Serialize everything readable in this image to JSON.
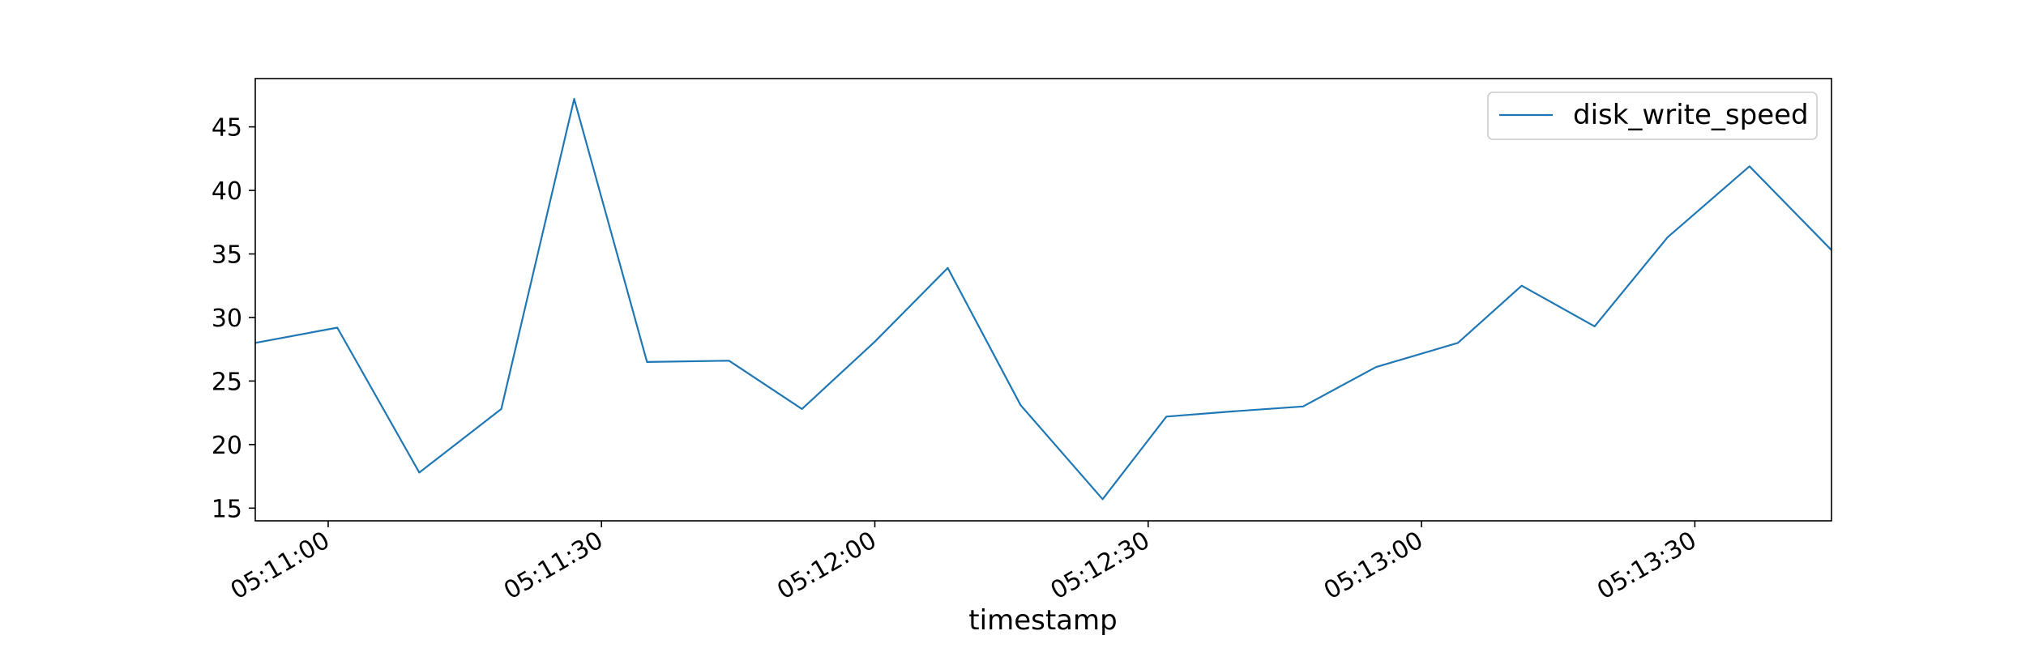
{
  "chart_data": {
    "type": "line",
    "title": "",
    "xlabel": "timestamp",
    "ylabel": "",
    "x": [
      "05:10:52",
      "05:11:01",
      "05:11:10",
      "05:11:19",
      "05:11:27",
      "05:11:35",
      "05:11:44",
      "05:11:52",
      "05:12:00",
      "05:12:08",
      "05:12:16",
      "05:12:25",
      "05:12:32",
      "05:12:39",
      "05:12:47",
      "05:12:55",
      "05:13:04",
      "05:13:11",
      "05:13:19",
      "05:13:27",
      "05:13:36",
      "05:13:45"
    ],
    "series": [
      {
        "name": "disk_write_speed",
        "color": "#1f77b4",
        "values": [
          28.0,
          29.2,
          17.8,
          22.8,
          47.2,
          26.5,
          26.6,
          22.8,
          28.1,
          33.9,
          23.1,
          15.7,
          22.2,
          22.6,
          23.0,
          26.1,
          28.0,
          32.5,
          29.3,
          36.3,
          41.9,
          35.3
        ]
      }
    ],
    "xlim": [
      "05:10:52",
      "05:13:45"
    ],
    "ylim": [
      14,
      48.8
    ],
    "xticks": [
      "05:11:00",
      "05:11:30",
      "05:12:00",
      "05:12:30",
      "05:13:00",
      "05:13:30"
    ],
    "yticks": [
      15,
      20,
      25,
      30,
      35,
      40,
      45
    ],
    "grid": false,
    "legend": "top-right"
  }
}
